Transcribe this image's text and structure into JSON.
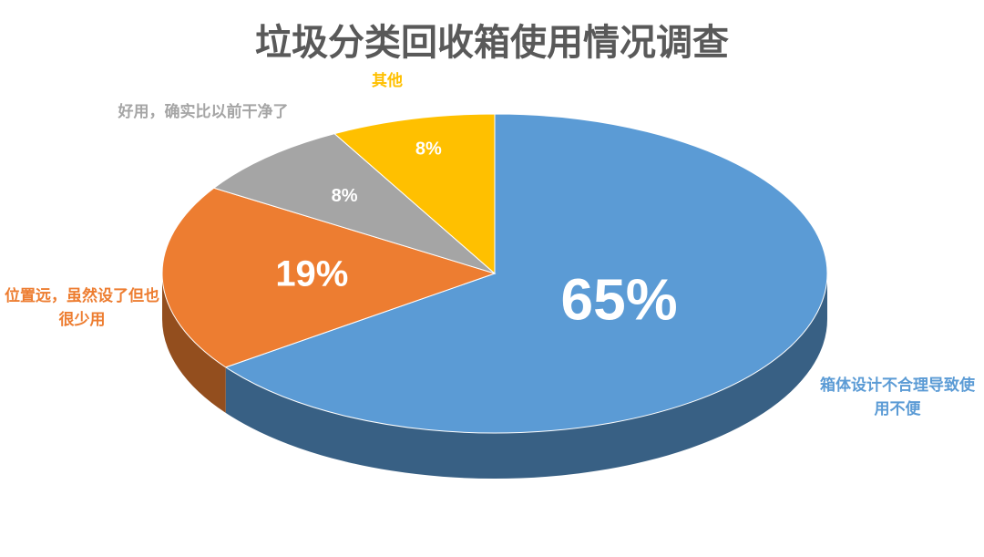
{
  "chart_data": {
    "type": "pie",
    "title": "垃圾分类回收箱使用情况调查",
    "categories": [
      "箱体设计不合理导致使用不便",
      "位置远，虽然设了但也很少用",
      "好用，确实比以前干净了",
      "其他"
    ],
    "values": [
      65,
      19,
      8,
      8
    ],
    "value_labels": [
      "65%",
      "19%",
      "8%",
      "8%"
    ],
    "colors": [
      "#5b9bd5",
      "#ed7d31",
      "#a5a5a5",
      "#ffc000"
    ]
  }
}
